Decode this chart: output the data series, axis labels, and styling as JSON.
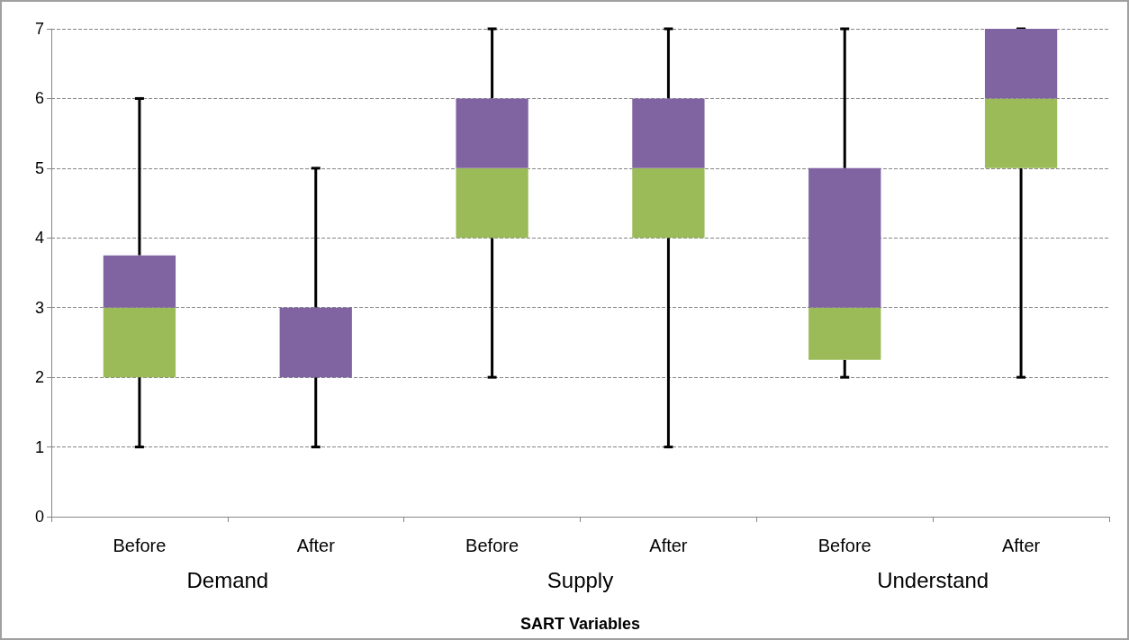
{
  "chart_data": {
    "type": "box",
    "xlabel": "SART Variables",
    "categories": [
      "Before",
      "After",
      "Before",
      "After",
      "Before",
      "After"
    ],
    "annotations": [
      "Demand",
      "Supply",
      "Understand"
    ],
    "series": [
      {
        "color": "#8064a2",
        "colors": [
          "#9bbb59",
          null,
          "#9bbb59",
          "#9bbb59",
          "#9bbb59",
          "#9bbb59"
        ],
        "boxes": [
          {
            "low": 1,
            "q1": 2,
            "median": 3,
            "q3": 3.75,
            "high": 6
          },
          {
            "low": 1,
            "q1": 2,
            "median": 2,
            "q3": 3,
            "high": 5
          },
          {
            "low": 2,
            "q1": 4,
            "median": 5,
            "q3": 6,
            "high": 7
          },
          {
            "low": 1,
            "q1": 4,
            "median": 5,
            "q3": 6,
            "high": 7
          },
          {
            "low": 2,
            "q1": 2.25,
            "median": 3,
            "q3": 5,
            "high": 7
          },
          {
            "low": 2,
            "q1": 5,
            "median": 6,
            "q3": 7,
            "high": 7
          }
        ]
      }
    ],
    "ylim": [
      0,
      7
    ],
    "yticks": [
      0,
      1,
      2,
      3,
      4,
      5,
      6,
      7
    ],
    "grid": "y"
  }
}
